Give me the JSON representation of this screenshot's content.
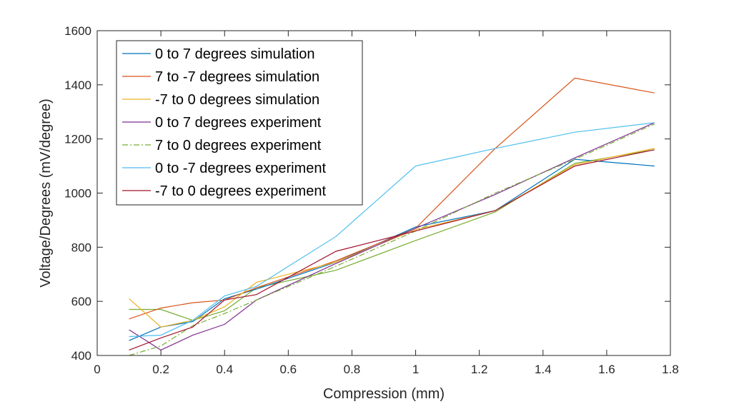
{
  "chart_data": {
    "type": "line",
    "xlabel": "Compression (mm)",
    "ylabel": "Voltage/Degrees (mV/degree)",
    "xlim": [
      0,
      1.8
    ],
    "ylim": [
      400,
      1600
    ],
    "xticks": [
      0,
      0.2,
      0.4,
      0.6,
      0.8,
      1,
      1.2,
      1.4,
      1.6,
      1.8
    ],
    "xtick_labels": [
      "0",
      "0.2",
      "0.4",
      "0.6",
      "0.8",
      "1",
      "1.2",
      "1.4",
      "1.6",
      "1.8"
    ],
    "yticks": [
      400,
      600,
      800,
      1000,
      1200,
      1400,
      1600
    ],
    "ytick_labels": [
      "400",
      "600",
      "800",
      "1000",
      "1200",
      "1400",
      "1600"
    ],
    "grid": false,
    "legend_position": "top-left",
    "x": [
      0.1,
      0.2,
      0.3,
      0.4,
      0.5,
      0.75,
      1,
      1.25,
      1.5,
      1.75
    ],
    "series": [
      {
        "name": "0 to 7 degrees simulation",
        "color": "#0072BD",
        "dash": "solid",
        "values": [
          455,
          505,
          525,
          610,
          645,
          745,
          875,
          935,
          1125,
          1100
        ]
      },
      {
        "name": "7 to -7 degrees simulation",
        "color": "#D95319",
        "dash": "solid",
        "values": [
          535,
          575,
          595,
          605,
          650,
          750,
          870,
          1165,
          1425,
          1370
        ]
      },
      {
        "name": "-7 to 0 degrees simulation",
        "color": "#EDB120",
        "dash": "solid",
        "values": [
          610,
          505,
          530,
          580,
          670,
          745,
          865,
          935,
          1105,
          1165
        ]
      },
      {
        "name": "0 to 7 degrees experiment",
        "color": "#7E2F8E",
        "dash": "solid",
        "values": [
          495,
          420,
          475,
          515,
          605,
          740,
          870,
          995,
          1130,
          1260
        ]
      },
      {
        "name": "7 to 0 degrees experiment",
        "color": "#77AC30",
        "dash": "dashdot",
        "values": [
          400,
          435,
          510,
          555,
          605,
          730,
          860,
          1000,
          1125,
          1255
        ]
      },
      {
        "name": "0 to -7 degrees experiment",
        "color": "#4DBEEE",
        "dash": "solid",
        "values": [
          470,
          475,
          530,
          620,
          655,
          840,
          1100,
          1165,
          1225,
          1260
        ]
      },
      {
        "name": "-7 to 0 degrees experiment",
        "color": "#A2142F",
        "dash": "solid",
        "values": [
          420,
          465,
          505,
          605,
          625,
          785,
          860,
          935,
          1100,
          1160
        ]
      }
    ],
    "extra_series": [
      {
        "color": "#77AC30",
        "dash": "solid",
        "values": [
          570,
          570,
          530,
          565,
          650,
          715,
          825,
          930,
          1110,
          1160
        ]
      }
    ]
  }
}
